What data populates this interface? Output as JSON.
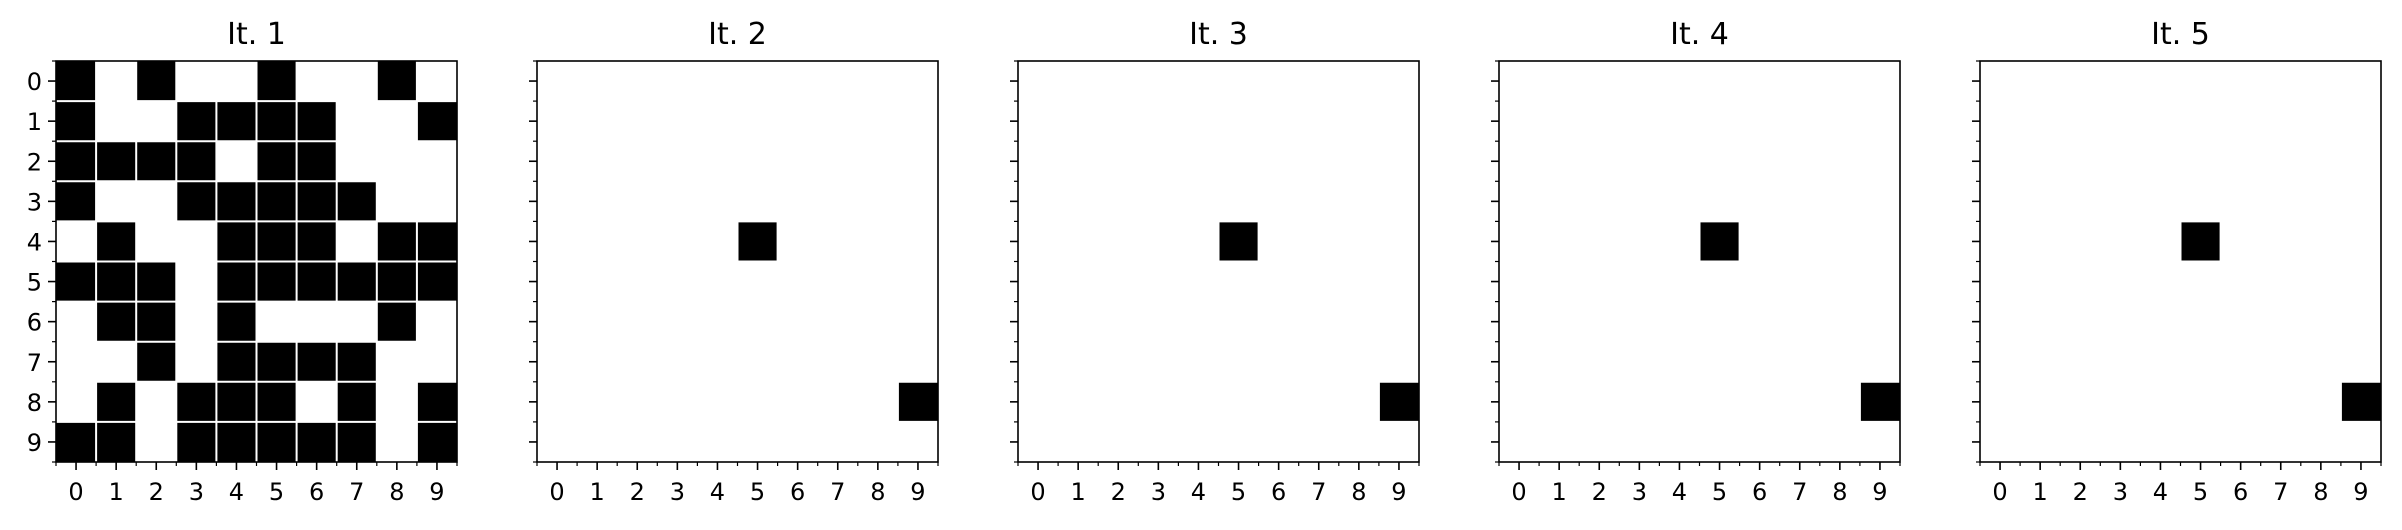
{
  "chart_data": [
    {
      "type": "heatmap",
      "title": "It. 1",
      "x_ticks": [
        "0",
        "1",
        "2",
        "3",
        "4",
        "5",
        "6",
        "7",
        "8",
        "9"
      ],
      "y_ticks": [
        "0",
        "1",
        "2",
        "3",
        "4",
        "5",
        "6",
        "7",
        "8",
        "9"
      ],
      "y_tick_labels_shown": true,
      "cell_colors": {
        "1": "#000000",
        "0": "#ffffff"
      },
      "grid": [
        [
          1,
          0,
          1,
          0,
          0,
          1,
          0,
          0,
          1,
          0
        ],
        [
          1,
          0,
          0,
          1,
          1,
          1,
          1,
          0,
          0,
          1
        ],
        [
          1,
          1,
          1,
          1,
          0,
          1,
          1,
          0,
          0,
          0
        ],
        [
          1,
          0,
          0,
          1,
          1,
          1,
          1,
          1,
          0,
          0
        ],
        [
          0,
          1,
          0,
          0,
          1,
          1,
          1,
          0,
          1,
          1
        ],
        [
          1,
          1,
          1,
          0,
          1,
          1,
          1,
          1,
          1,
          1
        ],
        [
          0,
          1,
          1,
          0,
          1,
          0,
          0,
          0,
          1,
          0
        ],
        [
          0,
          0,
          1,
          0,
          1,
          1,
          1,
          1,
          0,
          0
        ],
        [
          0,
          1,
          0,
          1,
          1,
          1,
          0,
          1,
          0,
          1
        ],
        [
          1,
          1,
          0,
          1,
          1,
          1,
          1,
          1,
          0,
          1
        ]
      ]
    },
    {
      "type": "heatmap",
      "title": "It. 2",
      "x_ticks": [
        "0",
        "1",
        "2",
        "3",
        "4",
        "5",
        "6",
        "7",
        "8",
        "9"
      ],
      "y_ticks": [
        "0",
        "1",
        "2",
        "3",
        "4",
        "5",
        "6",
        "7",
        "8",
        "9"
      ],
      "y_tick_labels_shown": false,
      "cell_colors": {
        "1": "#000000",
        "0": "#ffffff"
      },
      "grid": [
        [
          0,
          0,
          0,
          0,
          0,
          0,
          0,
          0,
          0,
          0
        ],
        [
          0,
          0,
          0,
          0,
          0,
          0,
          0,
          0,
          0,
          0
        ],
        [
          0,
          0,
          0,
          0,
          0,
          0,
          0,
          0,
          0,
          0
        ],
        [
          0,
          0,
          0,
          0,
          0,
          0,
          0,
          0,
          0,
          0
        ],
        [
          0,
          0,
          0,
          0,
          0,
          1,
          0,
          0,
          0,
          0
        ],
        [
          0,
          0,
          0,
          0,
          0,
          0,
          0,
          0,
          0,
          0
        ],
        [
          0,
          0,
          0,
          0,
          0,
          0,
          0,
          0,
          0,
          0
        ],
        [
          0,
          0,
          0,
          0,
          0,
          0,
          0,
          0,
          0,
          0
        ],
        [
          0,
          0,
          0,
          0,
          0,
          0,
          0,
          0,
          0,
          1
        ],
        [
          0,
          0,
          0,
          0,
          0,
          0,
          0,
          0,
          0,
          0
        ]
      ]
    },
    {
      "type": "heatmap",
      "title": "It. 3",
      "x_ticks": [
        "0",
        "1",
        "2",
        "3",
        "4",
        "5",
        "6",
        "7",
        "8",
        "9"
      ],
      "y_ticks": [
        "0",
        "1",
        "2",
        "3",
        "4",
        "5",
        "6",
        "7",
        "8",
        "9"
      ],
      "y_tick_labels_shown": false,
      "cell_colors": {
        "1": "#000000",
        "0": "#ffffff"
      },
      "grid": [
        [
          0,
          0,
          0,
          0,
          0,
          0,
          0,
          0,
          0,
          0
        ],
        [
          0,
          0,
          0,
          0,
          0,
          0,
          0,
          0,
          0,
          0
        ],
        [
          0,
          0,
          0,
          0,
          0,
          0,
          0,
          0,
          0,
          0
        ],
        [
          0,
          0,
          0,
          0,
          0,
          0,
          0,
          0,
          0,
          0
        ],
        [
          0,
          0,
          0,
          0,
          0,
          1,
          0,
          0,
          0,
          0
        ],
        [
          0,
          0,
          0,
          0,
          0,
          0,
          0,
          0,
          0,
          0
        ],
        [
          0,
          0,
          0,
          0,
          0,
          0,
          0,
          0,
          0,
          0
        ],
        [
          0,
          0,
          0,
          0,
          0,
          0,
          0,
          0,
          0,
          0
        ],
        [
          0,
          0,
          0,
          0,
          0,
          0,
          0,
          0,
          0,
          1
        ],
        [
          0,
          0,
          0,
          0,
          0,
          0,
          0,
          0,
          0,
          0
        ]
      ]
    },
    {
      "type": "heatmap",
      "title": "It. 4",
      "x_ticks": [
        "0",
        "1",
        "2",
        "3",
        "4",
        "5",
        "6",
        "7",
        "8",
        "9"
      ],
      "y_ticks": [
        "0",
        "1",
        "2",
        "3",
        "4",
        "5",
        "6",
        "7",
        "8",
        "9"
      ],
      "y_tick_labels_shown": false,
      "cell_colors": {
        "1": "#000000",
        "0": "#ffffff"
      },
      "grid": [
        [
          0,
          0,
          0,
          0,
          0,
          0,
          0,
          0,
          0,
          0
        ],
        [
          0,
          0,
          0,
          0,
          0,
          0,
          0,
          0,
          0,
          0
        ],
        [
          0,
          0,
          0,
          0,
          0,
          0,
          0,
          0,
          0,
          0
        ],
        [
          0,
          0,
          0,
          0,
          0,
          0,
          0,
          0,
          0,
          0
        ],
        [
          0,
          0,
          0,
          0,
          0,
          1,
          0,
          0,
          0,
          0
        ],
        [
          0,
          0,
          0,
          0,
          0,
          0,
          0,
          0,
          0,
          0
        ],
        [
          0,
          0,
          0,
          0,
          0,
          0,
          0,
          0,
          0,
          0
        ],
        [
          0,
          0,
          0,
          0,
          0,
          0,
          0,
          0,
          0,
          0
        ],
        [
          0,
          0,
          0,
          0,
          0,
          0,
          0,
          0,
          0,
          1
        ],
        [
          0,
          0,
          0,
          0,
          0,
          0,
          0,
          0,
          0,
          0
        ]
      ]
    },
    {
      "type": "heatmap",
      "title": "It. 5",
      "x_ticks": [
        "0",
        "1",
        "2",
        "3",
        "4",
        "5",
        "6",
        "7",
        "8",
        "9"
      ],
      "y_ticks": [
        "0",
        "1",
        "2",
        "3",
        "4",
        "5",
        "6",
        "7",
        "8",
        "9"
      ],
      "y_tick_labels_shown": false,
      "cell_colors": {
        "1": "#000000",
        "0": "#ffffff"
      },
      "grid": [
        [
          0,
          0,
          0,
          0,
          0,
          0,
          0,
          0,
          0,
          0
        ],
        [
          0,
          0,
          0,
          0,
          0,
          0,
          0,
          0,
          0,
          0
        ],
        [
          0,
          0,
          0,
          0,
          0,
          0,
          0,
          0,
          0,
          0
        ],
        [
          0,
          0,
          0,
          0,
          0,
          0,
          0,
          0,
          0,
          0
        ],
        [
          0,
          0,
          0,
          0,
          0,
          1,
          0,
          0,
          0,
          0
        ],
        [
          0,
          0,
          0,
          0,
          0,
          0,
          0,
          0,
          0,
          0
        ],
        [
          0,
          0,
          0,
          0,
          0,
          0,
          0,
          0,
          0,
          0
        ],
        [
          0,
          0,
          0,
          0,
          0,
          0,
          0,
          0,
          0,
          0
        ],
        [
          0,
          0,
          0,
          0,
          0,
          0,
          0,
          0,
          0,
          1
        ],
        [
          0,
          0,
          0,
          0,
          0,
          0,
          0,
          0,
          0,
          0
        ]
      ]
    }
  ]
}
